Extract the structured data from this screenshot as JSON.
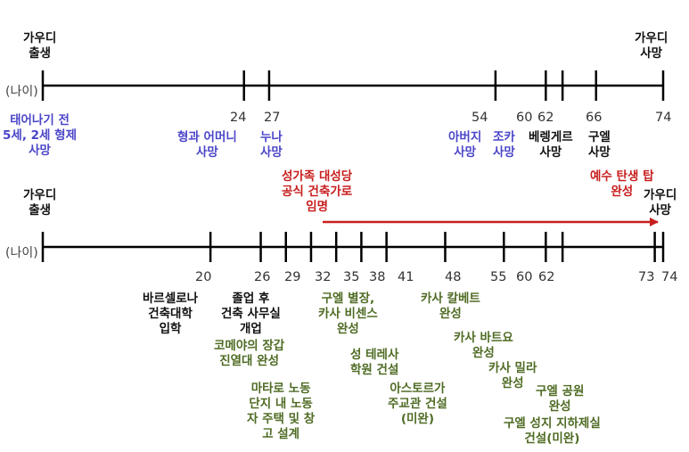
{
  "colors": {
    "black": "#111111",
    "blue": "#4b46c8",
    "green": "#4f6b24",
    "red": "#c81e1e",
    "axis": "#000000"
  },
  "top": {
    "start_label": [
      "가우디",
      "출생"
    ],
    "end_label": [
      "가우디",
      "사망"
    ],
    "axis_unit": "(나이)",
    "ages": [
      "24",
      "27",
      "54",
      "60",
      "62",
      "66",
      "74"
    ],
    "events": [
      {
        "lines": [
          "태어나기 전",
          "5세, 2세 형제",
          "사망"
        ],
        "color": "blue"
      },
      {
        "lines": [
          "형과 어머니",
          "사망"
        ],
        "color": "blue"
      },
      {
        "lines": [
          "누나",
          "사망"
        ],
        "color": "blue"
      },
      {
        "lines": [
          "아버지",
          "사망"
        ],
        "color": "blue"
      },
      {
        "lines": [
          "조카",
          "사망"
        ],
        "color": "blue"
      },
      {
        "lines": [
          "베렝게르",
          "사망"
        ],
        "color": "black"
      },
      {
        "lines": [
          "구엘",
          "사망"
        ],
        "color": "black"
      }
    ]
  },
  "bottom": {
    "start_label": [
      "가우디",
      "출생"
    ],
    "end_label": [
      "가우디",
      "사망"
    ],
    "axis_unit": "(나이)",
    "ages": [
      "20",
      "26",
      "29",
      "32",
      "35",
      "38",
      "41",
      "48",
      "55",
      "60",
      "62",
      "73",
      "74"
    ],
    "arrow_label": [
      "성가족 대성당",
      "공식 건축가로",
      "임명"
    ],
    "tower_label": [
      "예수 탄생 탑",
      "완성"
    ],
    "events": [
      {
        "lines": [
          "바르셀로나",
          "건축대학",
          "입학"
        ],
        "color": "black"
      },
      {
        "lines": [
          "졸업 후",
          "건축 사무실",
          "개업"
        ],
        "color": "black"
      },
      {
        "lines": [
          "코메야의 장갑",
          "진열대 완성"
        ],
        "color": "green"
      },
      {
        "lines": [
          "마타로 노동",
          "단지 내 노동",
          "자 주택 및 창",
          "고 설계"
        ],
        "color": "green"
      },
      {
        "lines": [
          "구엘 별장,",
          "카사 비센스",
          "완성"
        ],
        "color": "green"
      },
      {
        "lines": [
          "성 테레사",
          "학원 건설"
        ],
        "color": "green"
      },
      {
        "lines": [
          "아스토르가",
          "주교관 건설",
          "(미완)"
        ],
        "color": "green"
      },
      {
        "lines": [
          "카사 칼베트",
          "완성"
        ],
        "color": "green"
      },
      {
        "lines": [
          "카사 바트요",
          "완성"
        ],
        "color": "green"
      },
      {
        "lines": [
          "카사 밀라",
          "완성"
        ],
        "color": "green"
      },
      {
        "lines": [
          "구엘 공원",
          "완성"
        ],
        "color": "green"
      },
      {
        "lines": [
          "구엘 성지 지하제실",
          "건설(미완)"
        ],
        "color": "green"
      }
    ]
  }
}
